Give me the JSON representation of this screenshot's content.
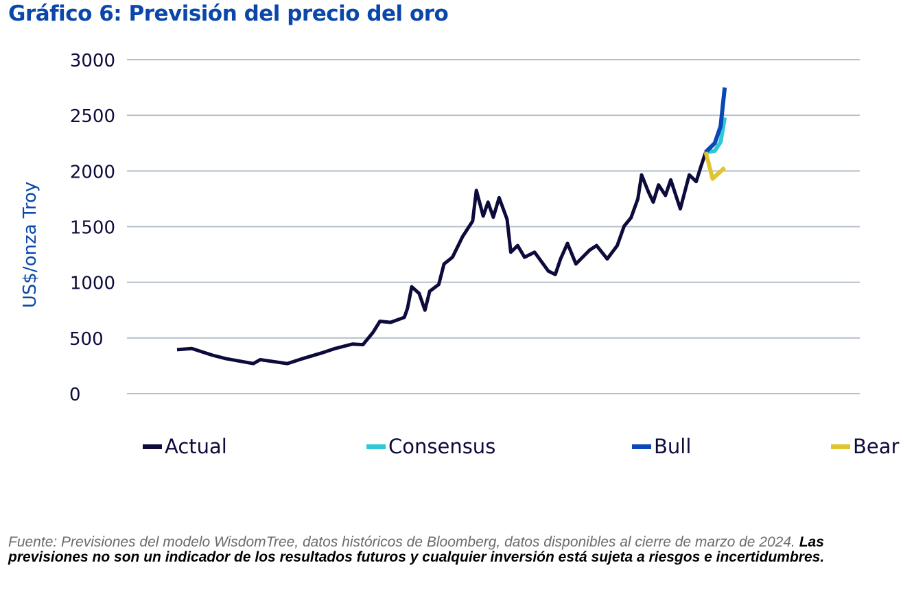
{
  "header": {
    "title": "Gráfico 6: Previsión del precio del oro"
  },
  "chart_data": {
    "type": "line",
    "title": "Gráfico 6: Previsión del precio del oro",
    "xlabel": "",
    "ylabel": "US$/onza Troy",
    "ylim": [
      0,
      3000
    ],
    "yticks": [
      "0",
      "500",
      "1000",
      "1500",
      "2000",
      "2500",
      "3000"
    ],
    "ytick_values": [
      0,
      500,
      1000,
      1500,
      2000,
      2500,
      3000
    ],
    "grid": true,
    "legend_position": "bottom",
    "x_note": "time index (no x-axis labels shown)",
    "xlim": [
      0,
      100
    ],
    "series": [
      {
        "name": "Actual",
        "color": "#0d0b3b",
        "x": [
          0,
          2.8,
          6.7,
          9.2,
          14.4,
          15.7,
          20.8,
          23.4,
          27.3,
          29.8,
          33.1,
          35.1,
          37.0,
          38.3,
          40.3,
          42.9,
          43.5,
          44.3,
          45.7,
          46.8,
          47.7,
          49.4,
          50.4,
          52.0,
          53.9,
          55.8,
          56.5,
          57.8,
          58.7,
          59.7,
          60.8,
          62.3,
          63.0,
          64.3,
          65.6,
          67.5,
          70.1,
          71.4,
          72.4,
          73.7,
          75.3,
          77.9,
          79.2,
          81.2,
          83.1,
          84.4,
          85.7,
          87.0,
          87.7,
          89.0,
          89.9,
          90.9,
          92.2,
          93.2,
          95.0,
          96.7,
          98.0,
          98.8,
          99.8
        ],
        "values": [
          395,
          405,
          345,
          315,
          270,
          305,
          270,
          310,
          365,
          405,
          445,
          440,
          550,
          650,
          640,
          685,
          765,
          960,
          900,
          750,
          920,
          980,
          1165,
          1225,
          1410,
          1550,
          1825,
          1595,
          1720,
          1585,
          1760,
          1565,
          1270,
          1330,
          1225,
          1270,
          1100,
          1070,
          1210,
          1350,
          1165,
          1290,
          1330,
          1210,
          1330,
          1505,
          1580,
          1750,
          1965,
          1810,
          1720,
          1875,
          1780,
          1920,
          1660,
          1965,
          1905,
          2025,
          2170
        ]
      },
      {
        "name": "Consensus",
        "color": "#2ec9d6",
        "x": [
          99.8,
          101.5,
          102.6,
          103.4
        ],
        "values": [
          2170,
          2180,
          2260,
          2480
        ]
      },
      {
        "name": "Bull",
        "color": "#0a47b8",
        "x": [
          99.8,
          101.5,
          102.6,
          103.4
        ],
        "values": [
          2170,
          2250,
          2400,
          2750
        ]
      },
      {
        "name": "Bear",
        "color": "#e0c52e",
        "x": [
          99.8,
          101.1,
          103.4
        ],
        "values": [
          2170,
          1930,
          2030
        ]
      }
    ]
  },
  "legend": {
    "items": [
      {
        "label": "Actual",
        "color": "#0d0b3b"
      },
      {
        "label": "Consensus",
        "color": "#2ec9d6"
      },
      {
        "label": "Bull",
        "color": "#0a47b8"
      },
      {
        "label": "Bear",
        "color": "#e0c52e"
      }
    ]
  },
  "footer": {
    "source_text": "Fuente: Previsiones del modelo WisdomTree, datos históricos de Bloomberg, datos disponibles al cierre de marzo de 2024. ",
    "disclaimer": "Las previsiones no son un indicador de los resultados futuros y cualquier inversión está sujeta a riesgos e incertidumbres."
  }
}
